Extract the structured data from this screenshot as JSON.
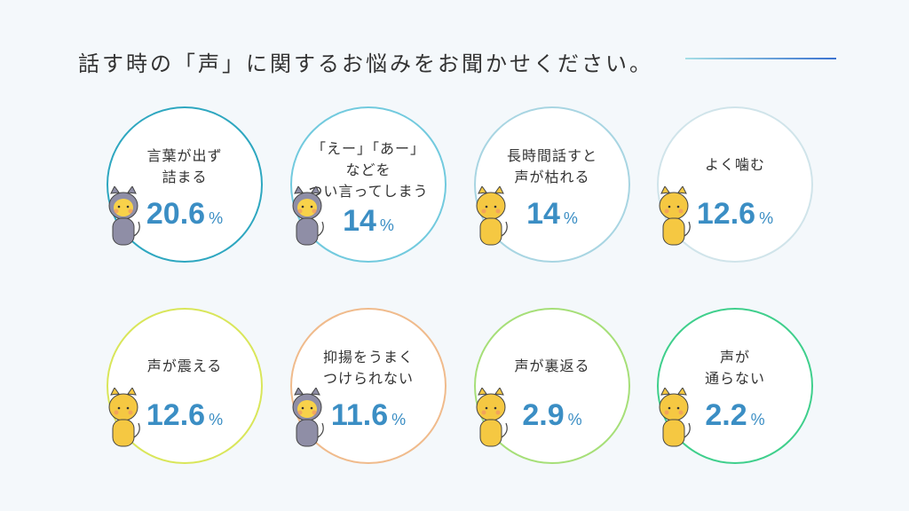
{
  "title": "話す時の「声」に関するお悩みをお聞かせください。",
  "items": [
    {
      "label_lines": [
        "言葉が出ず",
        "詰まる"
      ],
      "value": "20.6",
      "unit": "%",
      "color": "#2ea7c0",
      "character": "gray-devil-cat-speech-bubble-icon"
    },
    {
      "label_lines": [
        "「えー」「あー」",
        "などを",
        "つい言ってしまう"
      ],
      "value": "14",
      "unit": "%",
      "color": "#72cade",
      "character": "gray-devil-cat-sitting-icon"
    },
    {
      "label_lines": [
        "長時間話すと",
        "声が枯れる"
      ],
      "value": "14",
      "unit": "%",
      "color": "#a8d5e2",
      "character": "yellow-cat-mask-icon"
    },
    {
      "label_lines": [
        "よく噛む"
      ],
      "value": "12.6",
      "unit": "%",
      "color": "#d0e4ea",
      "character": "yellow-cat-icon"
    },
    {
      "label_lines": [
        "声が震える"
      ],
      "value": "12.6",
      "unit": "%",
      "color": "#d9e65a",
      "character": "yellow-cat-shaking-icon"
    },
    {
      "label_lines": [
        "抑揚をうまく",
        "つけられない"
      ],
      "value": "11.6",
      "unit": "%",
      "color": "#f0bb8c",
      "character": "gray-devil-cat-standing-icon"
    },
    {
      "label_lines": [
        "声が裏返る"
      ],
      "value": "2.9",
      "unit": "%",
      "color": "#a6df78",
      "character": "yellow-cat-surprised-icon"
    },
    {
      "label_lines": [
        "声が",
        "通らない"
      ],
      "value": "2.2",
      "unit": "%",
      "color": "#3fcf8c",
      "character": "yellow-cat-megaphone-icon"
    }
  ]
}
